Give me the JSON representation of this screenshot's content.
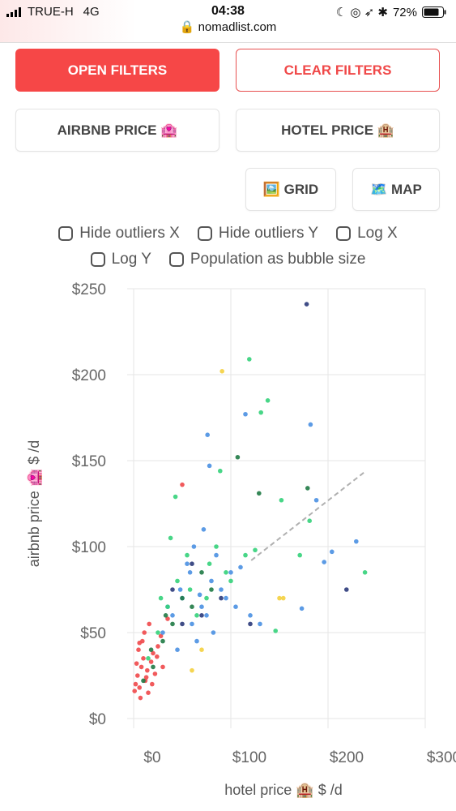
{
  "status": {
    "carrier": "TRUE-H",
    "network": "4G",
    "time": "04:38",
    "url": "nomadlist.com",
    "battery": "72%"
  },
  "filters": {
    "open": "OPEN FILTERS",
    "clear": "CLEAR FILTERS"
  },
  "sort": [
    "AIRBNB PRICE 🏩",
    "HOTEL PRICE 🏨"
  ],
  "views": [
    "🖼️ GRID",
    "🗺️ MAP"
  ],
  "options": [
    "Hide outliers X",
    "Hide outliers Y",
    "Log X",
    "Log Y",
    "Population as bubble size"
  ],
  "chart_data": {
    "type": "scatter",
    "x_label": "hotel price 🏨 $ /d",
    "y_label": "airbnb price 🏩 $ /d",
    "xlim": [
      0,
      300
    ],
    "ylim": [
      0,
      250
    ],
    "xticks": [
      {
        "value": 0,
        "label": "$0"
      },
      {
        "value": 100,
        "label": "$100"
      },
      {
        "value": 200,
        "label": "$200"
      },
      {
        "value": 300,
        "label": "$300"
      }
    ],
    "yticks": [
      {
        "value": 0,
        "label": "$0"
      },
      {
        "value": 50,
        "label": "$50"
      },
      {
        "value": 100,
        "label": "$100"
      },
      {
        "value": 150,
        "label": "$150"
      },
      {
        "value": 200,
        "label": "$200"
      },
      {
        "value": 250,
        "label": "$250"
      }
    ],
    "grid": true,
    "trendline": {
      "color": "#b0b0b0",
      "x": [
        121,
        239
      ],
      "y": [
        92,
        144
      ]
    },
    "series": [
      {
        "color": "#f0484a",
        "x": [
          2,
          4,
          6,
          8,
          10,
          12,
          14,
          5,
          9,
          15,
          18,
          20,
          22,
          25,
          7,
          3,
          11,
          16,
          28,
          30,
          13,
          19,
          24,
          35,
          6,
          1,
          50
        ],
        "y": [
          20,
          25,
          18,
          30,
          35,
          22,
          28,
          40,
          45,
          15,
          33,
          38,
          26,
          42,
          12,
          32,
          50,
          55,
          48,
          30,
          24,
          20,
          36,
          58,
          44,
          16,
          136
        ]
      },
      {
        "color": "#4a90e2",
        "x": [
          30,
          40,
          50,
          60,
          70,
          80,
          90,
          100,
          55,
          65,
          75,
          85,
          45,
          35,
          95,
          110,
          120,
          130,
          62,
          72,
          82,
          48,
          58,
          68,
          105,
          115,
          76,
          78,
          182,
          188,
          229,
          204,
          196,
          173
        ],
        "y": [
          50,
          60,
          70,
          55,
          65,
          80,
          75,
          85,
          90,
          45,
          60,
          95,
          40,
          65,
          70,
          88,
          60,
          55,
          100,
          110,
          50,
          75,
          85,
          72,
          65,
          177,
          165,
          147,
          171,
          127,
          103,
          97,
          91,
          64
        ]
      },
      {
        "color": "#34d27a",
        "x": [
          15,
          25,
          35,
          45,
          55,
          65,
          75,
          85,
          95,
          28,
          38,
          58,
          78,
          100,
          115,
          125,
          119,
          138,
          131,
          89,
          43,
          152,
          238,
          171,
          181,
          146
        ],
        "y": [
          35,
          50,
          65,
          80,
          95,
          60,
          70,
          100,
          85,
          70,
          105,
          75,
          90,
          80,
          95,
          98,
          209,
          185,
          178,
          144,
          129,
          127,
          85,
          95,
          115,
          51
        ]
      },
      {
        "color": "#1f7a45",
        "x": [
          10,
          20,
          30,
          40,
          50,
          60,
          70,
          80,
          18,
          33,
          107,
          179,
          129
        ],
        "y": [
          22,
          30,
          45,
          55,
          70,
          65,
          85,
          75,
          40,
          60,
          152,
          134,
          131
        ]
      },
      {
        "color": "#2b3a7a",
        "x": [
          50,
          60,
          90,
          120,
          70,
          40,
          178,
          219
        ],
        "y": [
          55,
          90,
          70,
          55,
          60,
          75,
          241,
          75
        ]
      },
      {
        "color": "#f4d03f",
        "x": [
          60,
          150,
          70,
          91,
          154
        ],
        "y": [
          28,
          70,
          40,
          202,
          70
        ]
      }
    ]
  }
}
